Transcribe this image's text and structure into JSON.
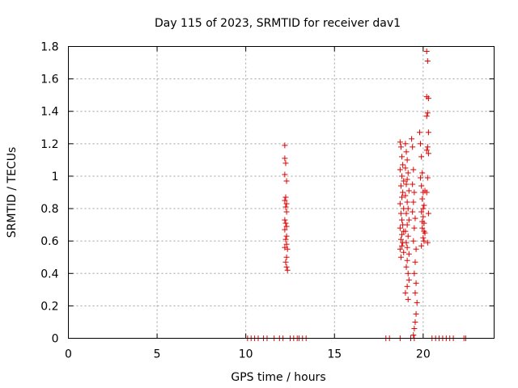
{
  "chart_data": {
    "type": "scatter",
    "title": "Day 115 of 2023, SRMTID for receiver dav1",
    "xlabel": "GPS time / hours",
    "ylabel": "SRMTID / TECUs",
    "xlim": [
      0,
      24
    ],
    "ylim": [
      0,
      1.8
    ],
    "xticks": [
      0,
      5,
      10,
      15,
      20
    ],
    "yticks": [
      0,
      0.2,
      0.4,
      0.6,
      0.8,
      1,
      1.2,
      1.4,
      1.6,
      1.8
    ],
    "ytick_labels": [
      "0",
      "0.2",
      "0.4",
      "0.6",
      "0.8",
      "1",
      "1.2",
      "1.4",
      "1.6",
      "1.8"
    ],
    "grid": true,
    "marker": "+",
    "marker_color": "#e00000",
    "series": [
      {
        "name": "dav1",
        "x": [
          10.1,
          10.3,
          10.5,
          10.7,
          11.0,
          11.2,
          11.6,
          11.9,
          12.1,
          12.5,
          12.7,
          12.9,
          13.0,
          13.2,
          13.4,
          17.9,
          18.1,
          18.7,
          19.3,
          19.5,
          20.5,
          20.7,
          20.9,
          21.1,
          21.3,
          21.5,
          21.7,
          22.3,
          22.4,
          12.2,
          12.2,
          12.25,
          12.2,
          12.3,
          12.25,
          12.2,
          12.3,
          12.25,
          12.3,
          12.2,
          12.25,
          12.3,
          12.2,
          12.3,
          12.25,
          12.3,
          12.2,
          12.35,
          12.3,
          12.25,
          12.3,
          12.35,
          18.7,
          18.75,
          18.8,
          18.85,
          18.7,
          18.8,
          18.9,
          18.75,
          18.85,
          18.8,
          18.7,
          18.9,
          18.75,
          18.8,
          18.85,
          18.7,
          18.9,
          18.8,
          18.75,
          18.85,
          18.8,
          18.7,
          18.9,
          18.75,
          19.0,
          19.05,
          19.1,
          19.0,
          19.15,
          19.1,
          19.05,
          19.2,
          19.0,
          19.1,
          19.15,
          19.05,
          19.2,
          19.1,
          19.0,
          19.15,
          19.05,
          19.1,
          19.2,
          19.1,
          19.05,
          19.15,
          19.2,
          19.1,
          19.0,
          19.15,
          19.35,
          19.4,
          19.45,
          19.4,
          19.5,
          19.45,
          19.4,
          19.55,
          19.5,
          19.45,
          19.6,
          19.55,
          19.5,
          19.6,
          19.55,
          19.65,
          19.6,
          19.55,
          19.5,
          19.45,
          19.8,
          19.85,
          19.9,
          19.95,
          19.85,
          19.9,
          20.0,
          19.95,
          20.05,
          19.9,
          20.0,
          20.05,
          19.95,
          20.1,
          20.0,
          20.05,
          19.9,
          20.0,
          20.1,
          19.95,
          20.05,
          20.2,
          20.25,
          20.2,
          20.3,
          20.25,
          20.2,
          20.3,
          20.25,
          20.2,
          20.3,
          20.25,
          20.2,
          20.3,
          20.25
        ],
        "y": [
          0,
          0,
          0,
          0,
          0,
          0,
          0,
          0,
          0,
          0,
          0,
          0,
          0,
          0,
          0,
          0,
          0,
          0,
          0,
          0,
          0,
          0,
          0,
          0,
          0,
          0,
          0,
          0,
          0,
          1.19,
          1.11,
          1.08,
          1.01,
          0.97,
          0.87,
          0.85,
          0.83,
          0.81,
          0.78,
          0.73,
          0.71,
          0.69,
          0.67,
          0.63,
          0.61,
          0.58,
          0.56,
          0.55,
          0.5,
          0.47,
          0.44,
          0.42,
          1.21,
          1.18,
          1.12,
          1.07,
          1.04,
          1.0,
          0.97,
          0.94,
          0.9,
          0.87,
          0.83,
          0.8,
          0.77,
          0.73,
          0.7,
          0.68,
          0.66,
          0.64,
          0.61,
          0.59,
          0.57,
          0.55,
          0.53,
          0.5,
          1.2,
          1.15,
          1.1,
          1.05,
          1.02,
          0.98,
          0.95,
          0.91,
          0.88,
          0.84,
          0.8,
          0.77,
          0.73,
          0.7,
          0.66,
          0.63,
          0.59,
          0.56,
          0.52,
          0.48,
          0.44,
          0.4,
          0.36,
          0.32,
          0.28,
          0.24,
          1.23,
          1.18,
          1.04,
          0.95,
          0.9,
          0.84,
          0.78,
          0.74,
          0.68,
          0.6,
          0.55,
          0.47,
          0.4,
          0.34,
          0.28,
          0.22,
          0.15,
          0.1,
          0.06,
          0.02,
          1.27,
          1.2,
          1.12,
          1.02,
          0.99,
          0.94,
          0.9,
          0.86,
          0.82,
          0.78,
          0.75,
          0.71,
          0.68,
          0.65,
          0.62,
          0.6,
          0.57,
          0.8,
          0.91,
          0.72,
          0.66,
          1.77,
          1.71,
          1.49,
          1.48,
          1.39,
          1.37,
          1.27,
          1.18,
          1.16,
          1.14,
          0.99,
          0.9,
          0.77,
          0.59
        ]
      }
    ]
  }
}
